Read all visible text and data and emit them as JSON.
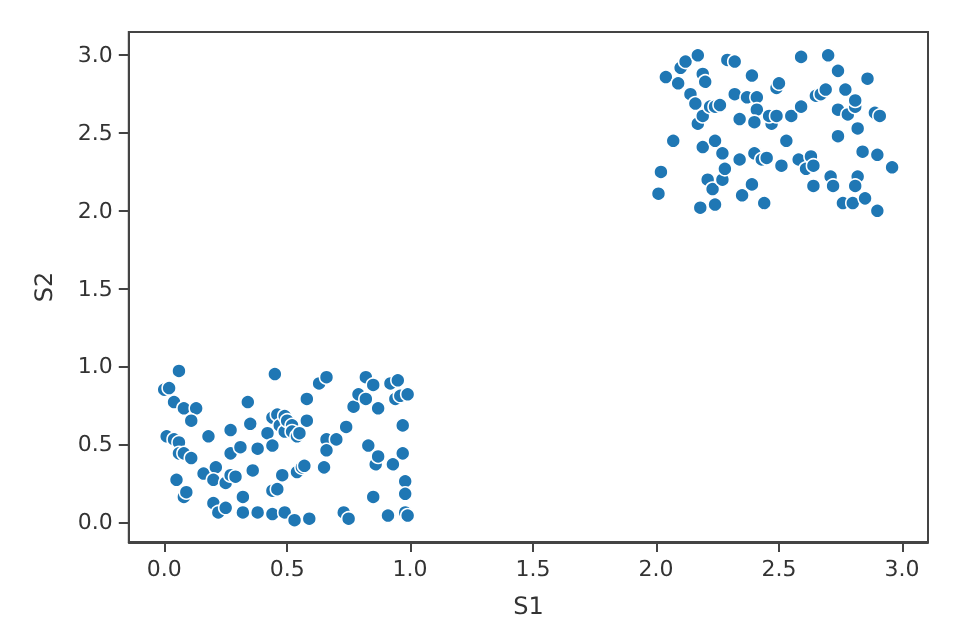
{
  "chart_data": {
    "type": "scatter",
    "xlabel": "S1",
    "ylabel": "S2",
    "xlim": [
      -0.144,
      3.106
    ],
    "ylim": [
      -0.13,
      3.15
    ],
    "xticks": [
      {
        "value": 0,
        "label": "0.0"
      },
      0.5,
      {
        "value": 1,
        "label": "1.0"
      },
      1.5,
      {
        "value": 2,
        "label": "2.0"
      },
      2.5,
      {
        "value": 3,
        "label": "3.0"
      }
    ],
    "yticks": [
      {
        "value": 0,
        "label": "0.0"
      },
      0.5,
      {
        "value": 1,
        "label": "1.0"
      },
      1.5,
      {
        "value": 2,
        "label": "2.0"
      },
      2.5,
      {
        "value": 3,
        "label": "3.0"
      }
    ],
    "grid": false,
    "marker": "circle",
    "series": [
      {
        "color": "#1f77b4",
        "x": [
          0.0,
          0.02,
          0.06,
          0.04,
          0.08,
          0.13,
          0.11,
          0.01,
          0.04,
          0.06,
          0.06,
          0.08,
          0.11,
          0.05,
          0.08,
          0.09,
          0.16,
          0.18,
          0.21,
          0.2,
          0.2,
          0.22,
          0.25,
          0.25,
          0.27,
          0.29,
          0.27,
          0.27,
          0.31,
          0.32,
          0.32,
          0.34,
          0.35,
          0.36,
          0.38,
          0.38,
          0.42,
          0.44,
          0.44,
          0.44,
          0.44,
          0.46,
          0.45,
          0.46,
          0.47,
          0.49,
          0.49,
          0.48,
          0.49,
          0.5,
          0.52,
          0.52,
          0.53,
          0.54,
          0.54,
          0.55,
          0.56,
          0.57,
          0.58,
          0.58,
          0.59,
          0.63,
          0.66,
          0.66,
          0.66,
          0.65,
          0.7,
          0.74,
          0.73,
          0.75,
          0.77,
          0.79,
          0.82,
          0.83,
          0.82,
          0.85,
          0.86,
          0.87,
          0.85,
          0.87,
          0.91,
          0.92,
          0.95,
          0.94,
          0.93,
          0.96,
          0.99,
          0.97,
          0.97,
          0.98,
          0.98,
          0.98,
          0.99,
          2.01,
          2.02,
          2.07,
          2.04,
          2.09,
          2.1,
          2.12,
          2.17,
          2.14,
          2.16,
          2.19,
          2.2,
          2.17,
          2.19,
          2.22,
          2.24,
          2.26,
          2.19,
          2.24,
          2.18,
          2.21,
          2.23,
          2.24,
          2.27,
          2.28,
          2.27,
          2.29,
          2.32,
          2.32,
          2.34,
          2.34,
          2.35,
          2.39,
          2.37,
          2.41,
          2.41,
          2.4,
          2.39,
          2.4,
          2.43,
          2.45,
          2.44,
          2.47,
          2.46,
          2.49,
          2.5,
          2.49,
          2.51,
          2.53,
          2.55,
          2.59,
          2.59,
          2.58,
          2.61,
          2.63,
          2.64,
          2.64,
          2.65,
          2.67,
          2.69,
          2.7,
          2.71,
          2.72,
          2.74,
          2.74,
          2.74,
          2.76,
          2.77,
          2.78,
          2.8,
          2.81,
          2.81,
          2.82,
          2.82,
          2.81,
          2.84,
          2.86,
          2.85,
          2.89,
          2.91,
          2.9,
          2.9,
          2.96
        ],
        "values": [
          0.85,
          0.86,
          0.97,
          0.77,
          0.73,
          0.73,
          0.65,
          0.55,
          0.53,
          0.51,
          0.44,
          0.44,
          0.41,
          0.27,
          0.16,
          0.19,
          0.31,
          0.55,
          0.35,
          0.27,
          0.12,
          0.06,
          0.09,
          0.25,
          0.3,
          0.29,
          0.44,
          0.59,
          0.48,
          0.16,
          0.06,
          0.77,
          0.63,
          0.33,
          0.47,
          0.06,
          0.57,
          0.67,
          0.49,
          0.05,
          0.2,
          0.21,
          0.95,
          0.69,
          0.62,
          0.58,
          0.68,
          0.3,
          0.06,
          0.65,
          0.62,
          0.58,
          0.01,
          0.32,
          0.55,
          0.57,
          0.35,
          0.36,
          0.65,
          0.79,
          0.02,
          0.89,
          0.93,
          0.53,
          0.46,
          0.35,
          0.53,
          0.61,
          0.06,
          0.02,
          0.74,
          0.82,
          0.93,
          0.49,
          0.79,
          0.88,
          0.37,
          0.42,
          0.16,
          0.73,
          0.04,
          0.89,
          0.91,
          0.79,
          0.37,
          0.81,
          0.82,
          0.62,
          0.44,
          0.26,
          0.18,
          0.06,
          0.04,
          2.11,
          2.25,
          2.45,
          2.86,
          2.82,
          2.92,
          2.96,
          3.0,
          2.75,
          2.69,
          2.88,
          2.83,
          2.56,
          2.61,
          2.67,
          2.67,
          2.68,
          2.41,
          2.45,
          2.02,
          2.2,
          2.14,
          2.04,
          2.2,
          2.27,
          2.37,
          2.97,
          2.96,
          2.75,
          2.59,
          2.33,
          2.1,
          2.87,
          2.73,
          2.73,
          2.65,
          2.57,
          2.17,
          2.37,
          2.33,
          2.34,
          2.05,
          2.56,
          2.61,
          2.79,
          2.82,
          2.61,
          2.29,
          2.45,
          2.61,
          2.99,
          2.67,
          2.33,
          2.27,
          2.35,
          2.29,
          2.16,
          2.74,
          2.75,
          2.78,
          3.0,
          2.22,
          2.16,
          2.9,
          2.65,
          2.48,
          2.05,
          2.78,
          2.62,
          2.05,
          2.67,
          2.71,
          2.53,
          2.22,
          2.16,
          2.38,
          2.85,
          2.08,
          2.63,
          2.61,
          2.36,
          2.0,
          2.28
        ]
      }
    ]
  }
}
